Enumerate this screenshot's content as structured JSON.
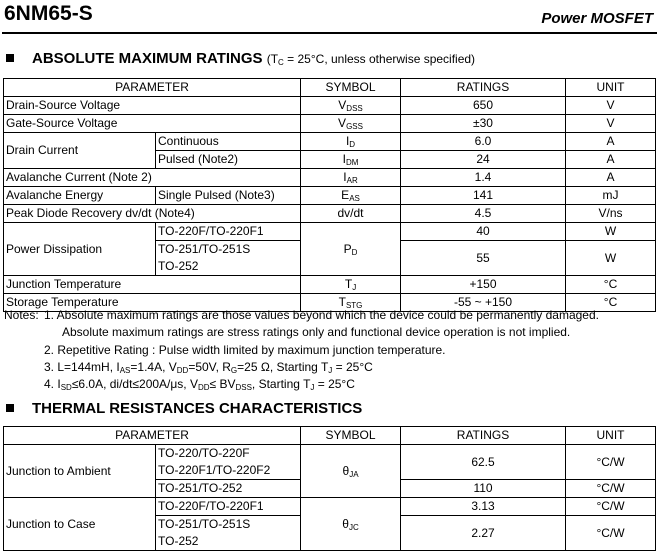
{
  "header": {
    "title": "6NM65-S",
    "subtitle": "Power MOSFET"
  },
  "abs_max": {
    "heading": "ABSOLUTE MAXIMUM RATINGS",
    "condition": [
      "(T",
      "C",
      " = 25°C, unless otherwise specified)"
    ],
    "table": {
      "columns": [
        "PARAMETER",
        "SYMBOL",
        "RATINGS",
        "UNIT"
      ],
      "rows": [
        {
          "parameter": "Drain-Source Voltage",
          "symbol": [
            "V",
            "DSS"
          ],
          "rating": "650",
          "unit": "V"
        },
        {
          "parameter": "Gate-Source Voltage",
          "symbol": [
            "V",
            "GSS"
          ],
          "rating": "±30",
          "unit": "V"
        },
        {
          "parameter": "Drain Current",
          "sub_rows": [
            {
              "condition": "Continuous",
              "symbol": [
                "I",
                "D"
              ],
              "rating": "6.0",
              "unit": "A"
            },
            {
              "condition": "Pulsed (Note2)",
              "symbol": [
                "I",
                "DM"
              ],
              "rating": "24",
              "unit": "A"
            }
          ]
        },
        {
          "parameter": "Avalanche Current (Note 2)",
          "symbol": [
            "I",
            "AR"
          ],
          "rating": "1.4",
          "unit": "A"
        },
        {
          "parameter": "Avalanche Energy",
          "condition": "Single Pulsed (Note3)",
          "symbol": [
            "E",
            "AS"
          ],
          "rating": "141",
          "unit": "mJ"
        },
        {
          "parameter": "Peak Diode Recovery dv/dt (Note4)",
          "symbol": "dv/dt",
          "rating": "4.5",
          "unit": "V/ns"
        },
        {
          "parameter": "Power Dissipation",
          "conditions": [
            "TO-220F/TO-220F1",
            "TO-251/TO-251S",
            "TO-252"
          ],
          "symbol": [
            "P",
            "D"
          ],
          "ratings": [
            "40",
            "55"
          ],
          "units": [
            "W",
            "W"
          ]
        },
        {
          "parameter": "Junction Temperature",
          "symbol": [
            "T",
            "J"
          ],
          "rating": "+150",
          "unit": "°C"
        },
        {
          "parameter": "Storage Temperature",
          "symbol": [
            "T",
            "STG"
          ],
          "rating": "-55 ~ +150",
          "unit": "°C"
        }
      ]
    }
  },
  "notes": {
    "label": "Notes:",
    "items": [
      [
        "1. Absolute maximum ratings are those values beyond which the device could be permanently damaged."
      ],
      [
        "Absolute maximum ratings are stress ratings only and functional device operation is not implied."
      ],
      [
        "2. Repetitive Rating : Pulse width limited by maximum junction temperature."
      ],
      [
        "3. L=144mH, I",
        "AS",
        "=1.4A, V",
        "DD",
        "=50V, R",
        "G",
        "=25 Ω, Starting T",
        "J",
        " = 25°C"
      ],
      [
        "4. I",
        "SD",
        "≤6.0A, di/dt≤200A/μs, V",
        "DD",
        "≤ BV",
        "DSS",
        ", Starting T",
        "J",
        " = 25°C"
      ]
    ]
  },
  "thermal": {
    "heading": "THERMAL RESISTANCES CHARACTERISTICS",
    "table": {
      "columns": [
        "PARAMETER",
        "SYMBOL",
        "RATINGS",
        "UNIT"
      ],
      "rows": [
        {
          "parameter": "Junction to Ambient",
          "conditions": [
            "TO-220/TO-220F",
            "TO-220F1/TO-220F2",
            "TO-251/TO-252"
          ],
          "symbol": [
            "θ",
            "JA"
          ],
          "ratings": [
            "62.5",
            "110"
          ],
          "units": [
            "°C/W",
            "°C/W"
          ]
        },
        {
          "parameter": "Junction to Case",
          "conditions": [
            "TO-220F/TO-220F1",
            "TO-251/TO-251S",
            "TO-252"
          ],
          "symbol": [
            "θ",
            "JC"
          ],
          "ratings": [
            "3.13",
            "2.27"
          ],
          "units": [
            "°C/W",
            "°C/W"
          ]
        }
      ]
    }
  }
}
